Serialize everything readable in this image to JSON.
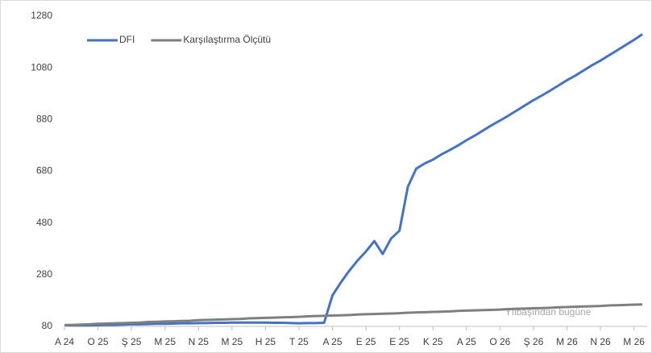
{
  "chart_data": {
    "type": "line",
    "categories": [
      "A 24",
      null,
      null,
      null,
      "O 25",
      null,
      null,
      null,
      "Ş 25",
      null,
      null,
      null,
      "M 25",
      null,
      null,
      null,
      "N 25",
      null,
      null,
      null,
      "M 25",
      null,
      null,
      null,
      "H 25",
      null,
      null,
      null,
      "T 25",
      null,
      null,
      null,
      "A 25",
      null,
      null,
      null,
      "E 25",
      null,
      null,
      null,
      "E 25",
      null,
      null,
      null,
      "K 25",
      null,
      null,
      null,
      "A 25",
      null,
      null,
      null,
      "O 26",
      null,
      null,
      null,
      "Ş 26",
      null,
      null,
      null,
      "M 26",
      null,
      null,
      null,
      "N 26",
      null,
      null,
      null,
      "M 26",
      null
    ],
    "series": [
      {
        "name": "DFI",
        "color": "#4472c4",
        "values": [
          85,
          84,
          84,
          84,
          85,
          86,
          86,
          87,
          88,
          88,
          89,
          90,
          90,
          91,
          92,
          92,
          93,
          93,
          94,
          94,
          95,
          95,
          95,
          95,
          95,
          94,
          94,
          93,
          92,
          93,
          93,
          94,
          200,
          250,
          295,
          335,
          370,
          410,
          360,
          420,
          450,
          620,
          690,
          710,
          725,
          745,
          762,
          780,
          800,
          818,
          838,
          858,
          876,
          895,
          915,
          935,
          955,
          973,
          992,
          1012,
          1032,
          1050,
          1070,
          1090,
          1108,
          1128,
          1148,
          1168,
          1188,
          1210
        ]
      },
      {
        "name": "Karşılaştırma Ölçütü",
        "color": "#7f7f7f",
        "values": [
          85,
          86,
          87,
          88,
          90,
          91,
          92,
          93,
          94,
          95,
          97,
          98,
          99,
          100,
          101,
          102,
          104,
          105,
          106,
          107,
          108,
          109,
          111,
          112,
          113,
          114,
          115,
          116,
          117,
          119,
          120,
          121,
          122,
          123,
          124,
          126,
          127,
          128,
          129,
          130,
          131,
          133,
          134,
          135,
          136,
          137,
          138,
          140,
          141,
          142,
          143,
          144,
          145,
          147,
          148,
          149,
          150,
          151,
          152,
          154,
          155,
          156,
          157,
          158,
          159,
          161,
          162,
          163,
          164,
          165
        ]
      }
    ],
    "ylim": [
      80,
      1280
    ],
    "yticks": [
      80,
      280,
      480,
      680,
      880,
      1080,
      1280
    ],
    "annotation": "Yılbaşından bugüne",
    "legend": "top-left",
    "grid": false
  }
}
